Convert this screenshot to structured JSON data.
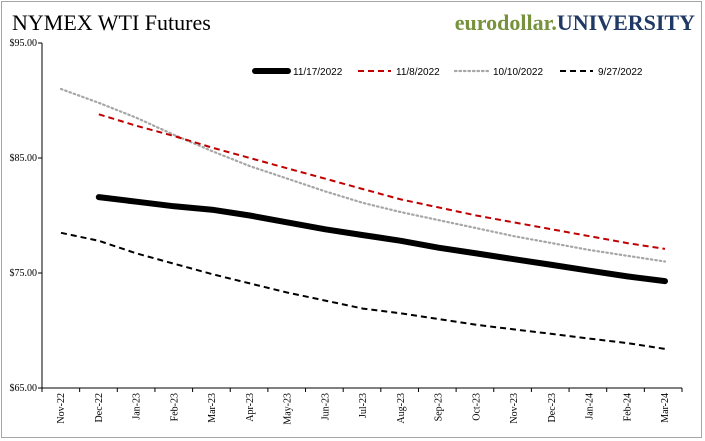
{
  "header": {
    "title": "NYMEX WTI Futures",
    "brand_part1": "eurodollar.",
    "brand_part2": "UNIVERSITY"
  },
  "chart_data": {
    "type": "line",
    "title": "NYMEX WTI Futures",
    "xlabel": "",
    "ylabel": "",
    "ylim": [
      65,
      95
    ],
    "yticks": [
      65,
      75,
      85,
      95
    ],
    "ytick_labels": [
      "$65.00",
      "$75.00",
      "$85.00",
      "$95.00"
    ],
    "grid": false,
    "legend_position": "top-right",
    "categories": [
      "Nov-22",
      "Dec-22",
      "Jan-23",
      "Feb-23",
      "Mar-23",
      "Apr-23",
      "May-23",
      "Jun-23",
      "Jul-23",
      "Aug-23",
      "Sep-23",
      "Oct-23",
      "Nov-23",
      "Dec-23",
      "Jan-24",
      "Feb-24",
      "Mar-24"
    ],
    "series": [
      {
        "name": "11/17/2022",
        "color": "#000000",
        "style": "solid-thick",
        "values": [
          null,
          81.6,
          81.2,
          80.8,
          80.5,
          80.0,
          79.4,
          78.8,
          78.3,
          77.8,
          77.2,
          76.7,
          76.2,
          75.7,
          75.2,
          74.7,
          74.3
        ]
      },
      {
        "name": "11/8/2022",
        "color": "#c00000",
        "style": "dashed",
        "values": [
          null,
          88.8,
          87.8,
          86.9,
          85.9,
          85.0,
          84.1,
          83.2,
          82.3,
          81.4,
          80.7,
          80.0,
          79.4,
          78.8,
          78.2,
          77.6,
          77.1
        ]
      },
      {
        "name": "10/10/2022",
        "color": "#a6a6a6",
        "style": "dotted",
        "values": [
          91.0,
          89.8,
          88.5,
          87.0,
          85.6,
          84.3,
          83.2,
          82.1,
          81.1,
          80.3,
          79.6,
          78.9,
          78.2,
          77.6,
          77.0,
          76.5,
          76.0
        ]
      },
      {
        "name": "9/27/2022",
        "color": "#000000",
        "style": "dashed",
        "values": [
          78.5,
          77.8,
          76.7,
          75.8,
          74.9,
          74.1,
          73.3,
          72.6,
          71.9,
          71.5,
          71.0,
          70.5,
          70.1,
          69.7,
          69.3,
          68.9,
          68.4
        ]
      }
    ]
  }
}
